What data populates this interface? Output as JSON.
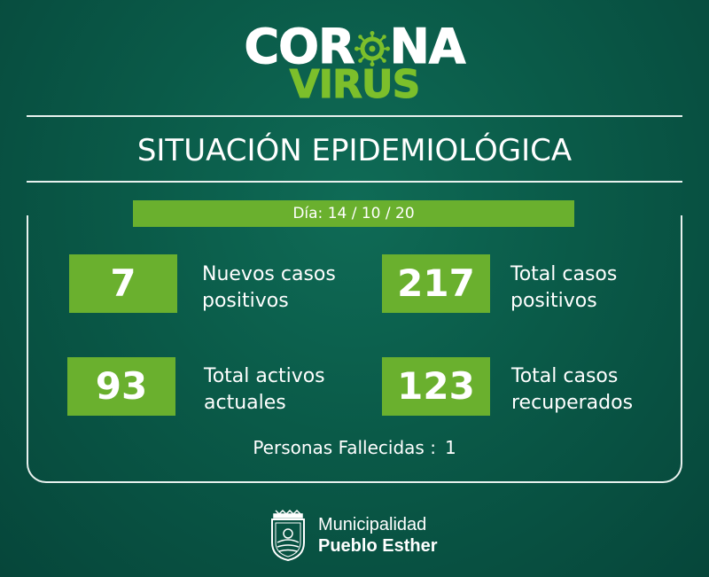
{
  "logo": {
    "word1_before": "COR",
    "word1_after": "NA",
    "word2": "VIRUS"
  },
  "title": "SITUACIÓN EPIDEMIOLÓGICA",
  "date_label": "Día: 14 / 10 / 20",
  "stats": [
    {
      "value": "7",
      "label_line1": "Nuevos casos",
      "label_line2": "positivos"
    },
    {
      "value": "217",
      "label_line1": "Total casos",
      "label_line2": "positivos"
    },
    {
      "value": "93",
      "label_line1": "Total activos",
      "label_line2": "actuales"
    },
    {
      "value": "123",
      "label_line1": "Total casos",
      "label_line2": "recuperados"
    }
  ],
  "deaths": {
    "label": "Personas Fallecidas :",
    "value": "1"
  },
  "municipality": {
    "line1": "Municipalidad",
    "line2": "Pueblo Esther"
  },
  "colors": {
    "background": "#0a5a48",
    "accent_green": "#6ab02e",
    "logo_green": "#7cbf2b",
    "text": "#ffffff"
  },
  "icons": [
    "coronavirus-icon",
    "municipal-seal-icon"
  ]
}
